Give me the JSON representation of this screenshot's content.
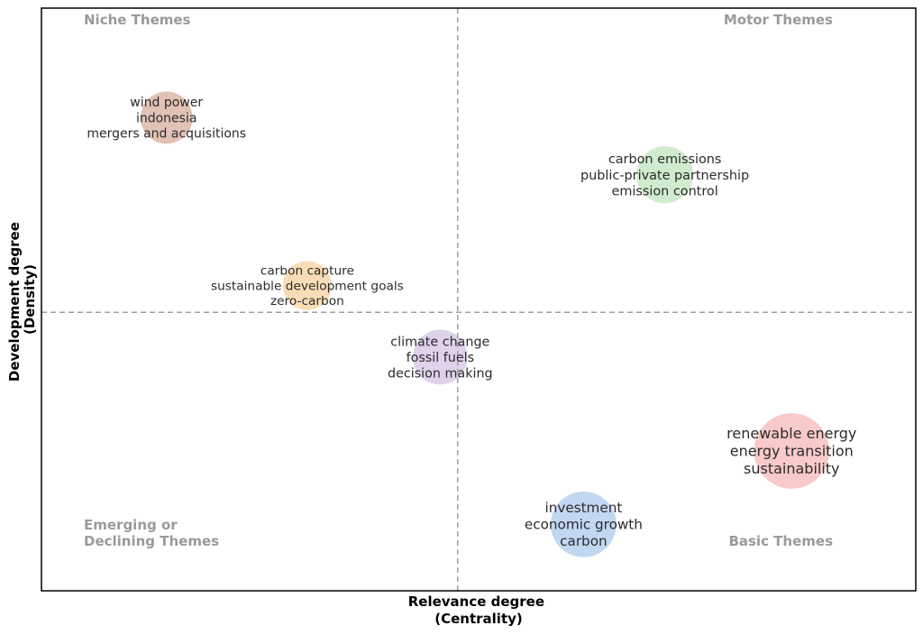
{
  "chart_data": {
    "type": "scatter",
    "title": "",
    "xlabel": [
      "Relevance degree",
      "(Centrality)"
    ],
    "ylabel": [
      "Development degree",
      "(Density)"
    ],
    "xlim": [
      0,
      1
    ],
    "ylim": [
      0,
      1
    ],
    "grid": false,
    "quadrant_divider": {
      "x": 0.476,
      "y": 0.478
    },
    "quadrants": [
      {
        "lines": [
          "Niche Themes"
        ],
        "position": "top-left"
      },
      {
        "lines": [
          "Motor Themes"
        ],
        "position": "top-right"
      },
      {
        "lines": [
          "Emerging or",
          "Declining Themes"
        ],
        "position": "bottom-left"
      },
      {
        "lines": [
          "Basic Themes"
        ],
        "position": "bottom-right"
      }
    ],
    "clusters": [
      {
        "x": 0.143,
        "y": 0.812,
        "size": 0.43,
        "color": "#d4a896",
        "terms": [
          "wind power",
          "indonesia",
          "mergers and acquisitions"
        ]
      },
      {
        "x": 0.713,
        "y": 0.714,
        "size": 0.52,
        "color": "#bde3b9",
        "terms": [
          "carbon emissions",
          "public-private partnership",
          "emission control"
        ]
      },
      {
        "x": 0.304,
        "y": 0.524,
        "size": 0.37,
        "color": "#f7cf97",
        "terms": [
          "carbon capture",
          "sustainable development goals",
          "zero-carbon"
        ]
      },
      {
        "x": 0.456,
        "y": 0.401,
        "size": 0.48,
        "color": "#d2bfe3",
        "terms": [
          "climate change",
          "fossil fuels",
          "decision making"
        ]
      },
      {
        "x": 0.858,
        "y": 0.24,
        "size": 0.86,
        "color": "#f6b3b3",
        "terms": [
          "renewable energy",
          "energy transition",
          "sustainability"
        ]
      },
      {
        "x": 0.62,
        "y": 0.114,
        "size": 0.68,
        "color": "#a8c8ec",
        "terms": [
          "investment",
          "economic growth",
          "carbon"
        ]
      }
    ]
  }
}
